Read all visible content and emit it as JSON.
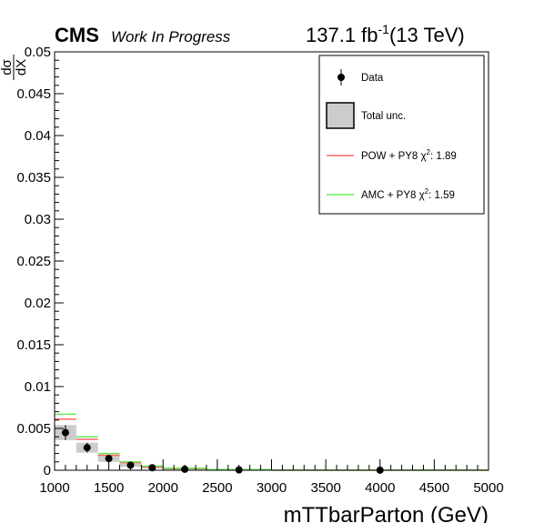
{
  "header": {
    "experiment": "CMS",
    "status": "Work In Progress",
    "lumi_prefix": "137.1 fb",
    "lumi_exponent": "-1",
    "lumi_suffix": "(13 TeV)"
  },
  "chart_data": {
    "type": "bar",
    "xlabel": "mTTbarParton (GeV)",
    "ylabel_numerator": "dσ",
    "ylabel_denominator": "dX",
    "xlim": [
      1000,
      5000
    ],
    "ylim": [
      0,
      0.05
    ],
    "x_ticks": [
      "1000",
      "1500",
      "2000",
      "2500",
      "3000",
      "3500",
      "4000",
      "4500",
      "5000"
    ],
    "y_ticks": [
      "0",
      "0.005",
      "0.01",
      "0.015",
      "0.02",
      "0.025",
      "0.03",
      "0.035",
      "0.04",
      "0.045",
      "0.05"
    ],
    "bins": [
      {
        "lo": 1000,
        "hi": 1200,
        "data": 0.0045,
        "unc": 0.0009,
        "pow": 0.0061,
        "amc": 0.0067
      },
      {
        "lo": 1200,
        "hi": 1400,
        "data": 0.0027,
        "unc": 0.0006,
        "pow": 0.0037,
        "amc": 0.004
      },
      {
        "lo": 1400,
        "hi": 1600,
        "data": 0.0014,
        "unc": 0.0004,
        "pow": 0.0018,
        "amc": 0.002
      },
      {
        "lo": 1600,
        "hi": 1800,
        "data": 0.0006,
        "unc": 0.0002,
        "pow": 0.0009,
        "amc": 0.001
      },
      {
        "lo": 1800,
        "hi": 2000,
        "data": 0.0003,
        "unc": 0.0001,
        "pow": 0.0004,
        "amc": 0.0005
      },
      {
        "lo": 2000,
        "hi": 2400,
        "data": 0.00012,
        "unc": 5e-05,
        "pow": 0.0002,
        "amc": 0.00024
      },
      {
        "lo": 2400,
        "hi": 3000,
        "data": 4e-05,
        "unc": 2e-05,
        "pow": 6e-05,
        "amc": 8e-05
      },
      {
        "lo": 3000,
        "hi": 5000,
        "data": 1e-05,
        "unc": 5e-06,
        "pow": 1e-05,
        "amc": 1.2e-05
      }
    ],
    "legend": {
      "placement": "top-right",
      "entries": [
        {
          "key": "data",
          "label": "Data"
        },
        {
          "key": "unc",
          "label": "Total unc."
        },
        {
          "key": "pow",
          "label": "POW + PY8 χ",
          "chi2": "1.89"
        },
        {
          "key": "amc",
          "label": "AMC + PY8 χ",
          "chi2": "1.59"
        }
      ]
    },
    "colors": {
      "data": "#000000",
      "unc_fill": "#cccccc",
      "pow": "#ff6666",
      "amc": "#66ee55"
    }
  }
}
